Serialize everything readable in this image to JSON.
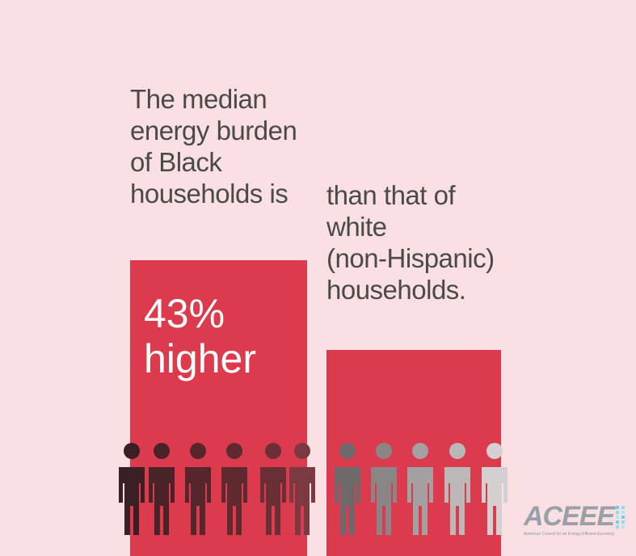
{
  "chart_data": {
    "type": "bar",
    "categories": [
      "Black households",
      "white (non-Hispanic) households"
    ],
    "values": [
      1.43,
      1.0
    ],
    "title_lines": [
      "The median",
      "energy burden",
      "of Black",
      "households is"
    ],
    "highlight_lines": [
      "43%",
      "higher"
    ],
    "comparison_lines": [
      "than that of",
      "white",
      "(non-Hispanic)",
      "households."
    ]
  },
  "logo": {
    "name": "ACEEE",
    "tagline": "American Council for an Energy-Efficient Economy"
  },
  "colors": {
    "background": "#fbe0e3",
    "bar": "#dc3b4e",
    "text": "#4a4a4a",
    "figures_black": [
      "#3a1f24",
      "#4a2328",
      "#56262c",
      "#5e2a30",
      "#6a2f36",
      "#7a3a40"
    ],
    "figures_white": [
      "#6e6a6c",
      "#8a8688",
      "#a4a0a2",
      "#bcb8ba",
      "#d4d0d2"
    ]
  }
}
